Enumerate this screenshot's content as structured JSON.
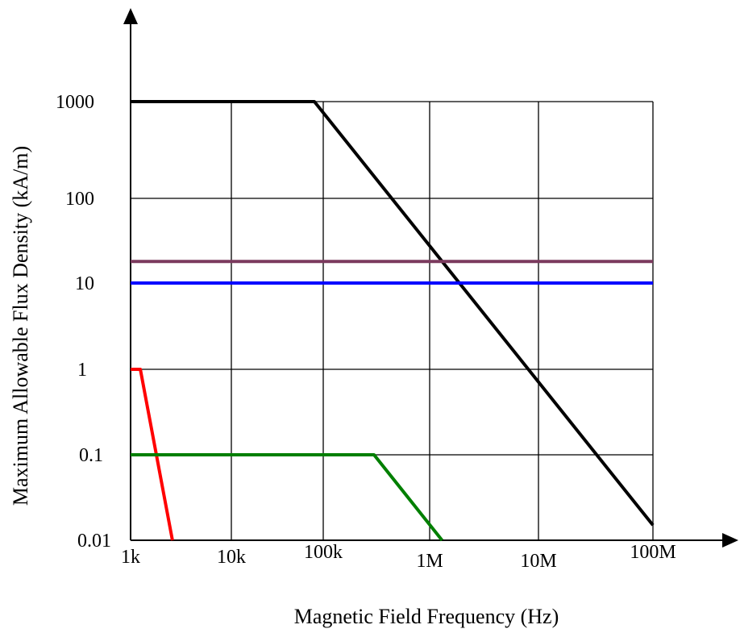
{
  "chart_data": {
    "type": "line",
    "title": "",
    "xlabel": "Magnetic Field Frequency (Hz)",
    "ylabel": "Maximum Allowable Flux Density (kA/m)",
    "x_scale": "log",
    "y_scale": "log",
    "grid": true,
    "legend": "none",
    "x_ticks": [
      {
        "value": 1000,
        "label": "1k"
      },
      {
        "value": 10000,
        "label": "10k"
      },
      {
        "value": 100000,
        "label": "100k"
      },
      {
        "value": 1000000,
        "label": "1M"
      },
      {
        "value": 10000000,
        "label": "10M"
      },
      {
        "value": 100000000,
        "label": "100M"
      }
    ],
    "y_ticks": [
      {
        "value": 0.01,
        "label": "0.01"
      },
      {
        "value": 0.1,
        "label": "0.1"
      },
      {
        "value": 1,
        "label": "1"
      },
      {
        "value": 10,
        "label": "10"
      },
      {
        "value": 100,
        "label": "100"
      },
      {
        "value": 1000,
        "label": "1000"
      }
    ],
    "series": [
      {
        "color": "#000000",
        "points": [
          [
            1000,
            1000
          ],
          [
            80000,
            1000
          ],
          [
            100000000,
            0.015
          ]
        ]
      },
      {
        "color": "#7b3a5e",
        "points": [
          [
            1000,
            18
          ],
          [
            100000000,
            18
          ]
        ]
      },
      {
        "color": "#0000ff",
        "points": [
          [
            1000,
            10
          ],
          [
            100000000,
            10
          ]
        ]
      },
      {
        "color": "#ff0000",
        "points": [
          [
            1000,
            1
          ],
          [
            1250,
            1
          ],
          [
            2600,
            0.01
          ]
        ]
      },
      {
        "color": "#007f00",
        "points": [
          [
            1000,
            0.1
          ],
          [
            300000,
            0.1
          ],
          [
            1300000,
            0.01
          ]
        ]
      }
    ]
  }
}
